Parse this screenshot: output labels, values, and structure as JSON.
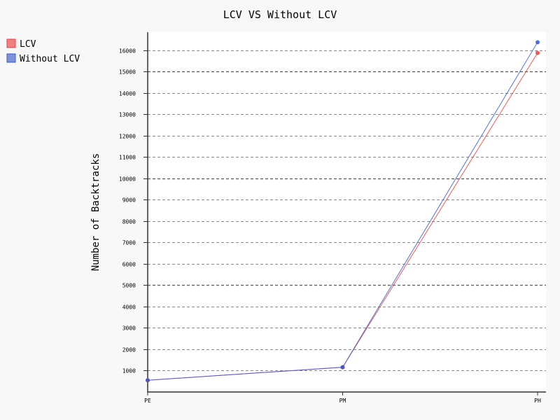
{
  "chart_data": {
    "type": "line",
    "title": "LCV VS Without LCV",
    "xlabel": "",
    "ylabel": "Number of Backtracks",
    "categories": [
      "PE",
      "PM",
      "PH"
    ],
    "series": [
      {
        "name": "LCV",
        "values": [
          550,
          1160,
          15880
        ],
        "color": "#e8413f"
      },
      {
        "name": "Without LCV",
        "values": [
          550,
          1160,
          16380
        ],
        "color": "#3a5bc7"
      }
    ],
    "yticks": [
      1000,
      2000,
      3000,
      4000,
      5000,
      6000,
      7000,
      8000,
      9000,
      10000,
      11000,
      12000,
      13000,
      14000,
      15000,
      16000
    ],
    "ylim": [
      0,
      16850
    ],
    "grid": true,
    "legend_position": "top-left",
    "colors": {
      "background": "#f8f8f8",
      "plot_background": "#ffffff",
      "grid": "#777777"
    }
  }
}
